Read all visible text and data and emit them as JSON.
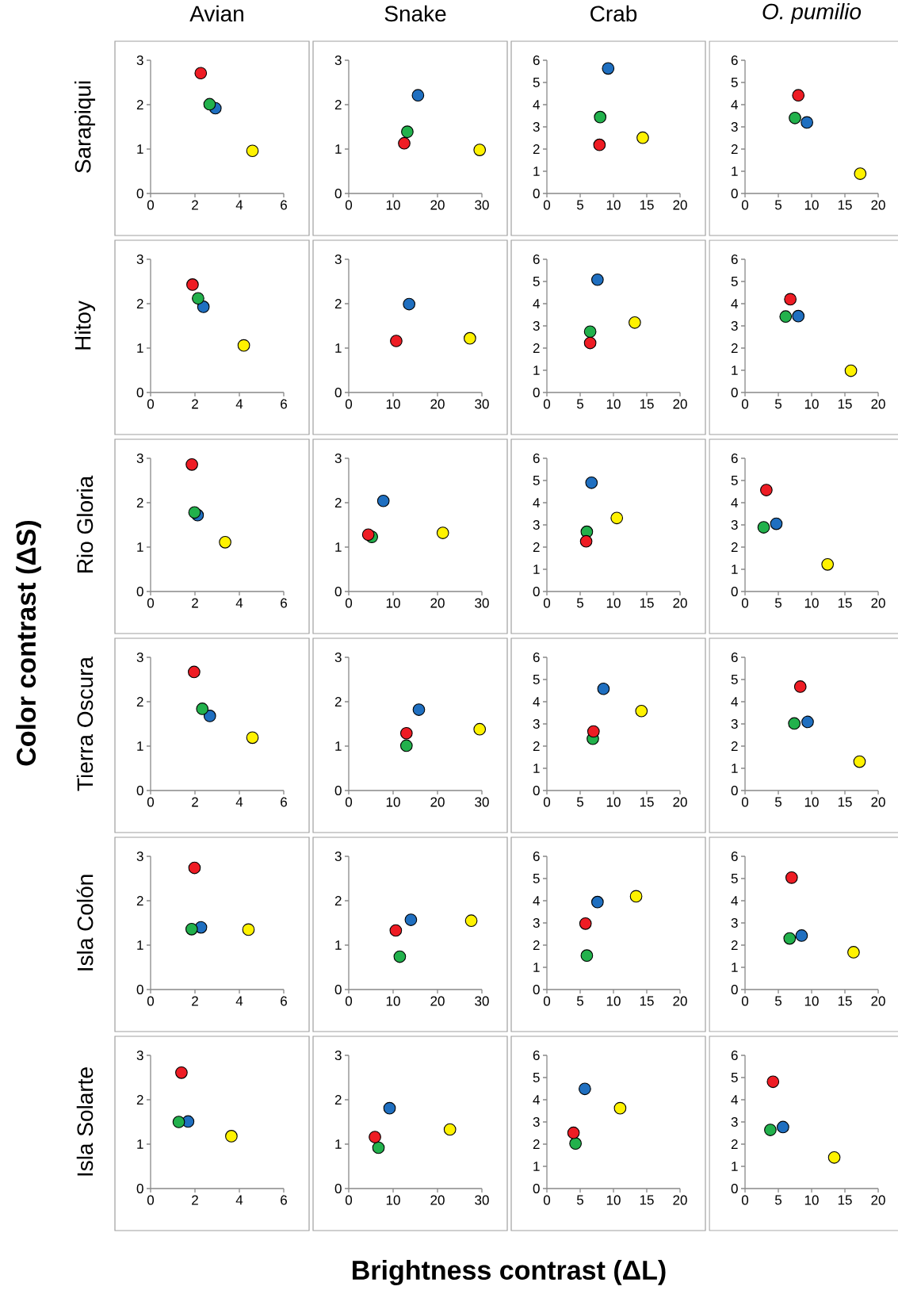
{
  "chart_data": [
    {
      "type": "scatter",
      "title": "Avian",
      "ylabel": "Sarapiqui",
      "annotations": [
        "Color contrast (**ΔS**)",
        "Brightness contrast (ΔL)"
      ],
      "xlim": [
        0,
        6
      ],
      "ylim": [
        0,
        3
      ],
      "xticks": [
        0,
        2,
        4,
        6
      ],
      "yticks": [
        0,
        1,
        2,
        3
      ],
      "marker": "circle",
      "colors": [
        "#ee1c24",
        "#22b14c",
        "#1f6fc0",
        "#fff200"
      ],
      "x": [
        2.26,
        2.66,
        2.92,
        4.59
      ],
      "values": [
        2.71,
        2.01,
        1.92,
        0.96
      ]
    },
    {
      "type": "scatter",
      "title": "Snake",
      "xlim": [
        0,
        30
      ],
      "ylim": [
        0,
        3
      ],
      "xticks": [
        0,
        10,
        20,
        30
      ],
      "yticks": [
        0,
        1,
        2,
        3
      ],
      "marker": "circle",
      "colors": [
        "#ee1c24",
        "#22b14c",
        "#1f6fc0",
        "#fff200"
      ],
      "x": [
        12.5,
        13.2,
        15.6,
        29.5
      ],
      "values": [
        1.13,
        1.39,
        2.21,
        0.98
      ]
    },
    {
      "type": "scatter",
      "title": "Crab",
      "xlim": [
        0,
        20
      ],
      "ylim": [
        0,
        6
      ],
      "xticks": [
        0,
        5,
        10,
        15,
        20
      ],
      "yticks": [
        0,
        1,
        2,
        3,
        4,
        5,
        6
      ],
      "marker": "circle",
      "colors": [
        "#ee1c24",
        "#22b14c",
        "#1f6fc0",
        "#fff200"
      ],
      "x": [
        7.9,
        8.0,
        9.2,
        14.4
      ],
      "values": [
        2.19,
        3.44,
        5.63,
        2.51
      ]
    },
    {
      "type": "scatter",
      "title": "*O. pumilio*",
      "xlim": [
        0,
        20
      ],
      "ylim": [
        0,
        6
      ],
      "xticks": [
        0,
        5,
        10,
        15,
        20
      ],
      "yticks": [
        0,
        1,
        2,
        3,
        4,
        5,
        6
      ],
      "marker": "circle",
      "colors": [
        "#ee1c24",
        "#22b14c",
        "#1f6fc0",
        "#fff200"
      ],
      "x": [
        8.0,
        7.5,
        9.3,
        17.3
      ],
      "values": [
        4.42,
        3.4,
        3.2,
        0.89
      ]
    },
    {
      "type": "scatter",
      "ylabel": "Hitoy",
      "xlim": [
        0,
        6
      ],
      "ylim": [
        0,
        3
      ],
      "xticks": [
        0,
        2,
        4,
        6
      ],
      "yticks": [
        0,
        1,
        2,
        3
      ],
      "marker": "circle",
      "colors": [
        "#ee1c24",
        "#22b14c",
        "#1f6fc0",
        "#fff200"
      ],
      "x": [
        1.89,
        2.14,
        2.38,
        4.2
      ],
      "values": [
        2.43,
        2.12,
        1.93,
        1.06
      ]
    },
    {
      "type": "scatter",
      "xlim": [
        0,
        30
      ],
      "ylim": [
        0,
        3
      ],
      "xticks": [
        0,
        10,
        20,
        30
      ],
      "yticks": [
        0,
        1,
        2,
        3
      ],
      "marker": "circle",
      "colors": [
        "#ee1c24",
        "#22b14c",
        "#1f6fc0",
        "#fff200"
      ],
      "x": [
        10.7,
        null,
        13.6,
        27.3
      ],
      "values": [
        1.16,
        null,
        1.99,
        1.22
      ]
    },
    {
      "type": "scatter",
      "xlim": [
        0,
        20
      ],
      "ylim": [
        0,
        6
      ],
      "xticks": [
        0,
        5,
        10,
        15,
        20
      ],
      "yticks": [
        0,
        1,
        2,
        3,
        4,
        5,
        6
      ],
      "marker": "circle",
      "colors": [
        "#ee1c24",
        "#22b14c",
        "#1f6fc0",
        "#fff200"
      ],
      "x": [
        6.5,
        6.5,
        7.6,
        13.2
      ],
      "values": [
        2.23,
        2.74,
        5.08,
        3.15
      ]
    },
    {
      "type": "scatter",
      "xlim": [
        0,
        20
      ],
      "ylim": [
        0,
        6
      ],
      "xticks": [
        0,
        5,
        10,
        15,
        20
      ],
      "yticks": [
        0,
        1,
        2,
        3,
        4,
        5,
        6
      ],
      "marker": "circle",
      "colors": [
        "#ee1c24",
        "#22b14c",
        "#1f6fc0",
        "#fff200"
      ],
      "x": [
        6.8,
        6.1,
        8.0,
        15.9
      ],
      "values": [
        4.2,
        3.42,
        3.44,
        0.98
      ]
    },
    {
      "type": "scatter",
      "ylabel": "Rio Gloria",
      "xlim": [
        0,
        6
      ],
      "ylim": [
        0,
        3
      ],
      "xticks": [
        0,
        2,
        4,
        6
      ],
      "yticks": [
        0,
        1,
        2,
        3
      ],
      "marker": "circle",
      "colors": [
        "#ee1c24",
        "#22b14c",
        "#1f6fc0",
        "#fff200"
      ],
      "x": [
        1.86,
        1.98,
        2.12,
        3.36
      ],
      "values": [
        2.86,
        1.78,
        1.72,
        1.11
      ]
    },
    {
      "type": "scatter",
      "xlim": [
        0,
        30
      ],
      "ylim": [
        0,
        3
      ],
      "xticks": [
        0,
        10,
        20,
        30
      ],
      "yticks": [
        0,
        1,
        2,
        3
      ],
      "marker": "circle",
      "colors": [
        "#ee1c24",
        "#22b14c",
        "#1f6fc0",
        "#fff200"
      ],
      "x": [
        4.4,
        5.2,
        7.8,
        21.2
      ],
      "values": [
        1.28,
        1.23,
        2.04,
        1.32
      ]
    },
    {
      "type": "scatter",
      "xlim": [
        0,
        20
      ],
      "ylim": [
        0,
        6
      ],
      "xticks": [
        0,
        5,
        10,
        15,
        20
      ],
      "yticks": [
        0,
        1,
        2,
        3,
        4,
        5,
        6
      ],
      "marker": "circle",
      "colors": [
        "#ee1c24",
        "#22b14c",
        "#1f6fc0",
        "#fff200"
      ],
      "x": [
        5.9,
        6.0,
        6.7,
        10.5
      ],
      "values": [
        2.26,
        2.69,
        4.9,
        3.31
      ]
    },
    {
      "type": "scatter",
      "xlim": [
        0,
        20
      ],
      "ylim": [
        0,
        6
      ],
      "xticks": [
        0,
        5,
        10,
        15,
        20
      ],
      "yticks": [
        0,
        1,
        2,
        3,
        4,
        5,
        6
      ],
      "marker": "circle",
      "colors": [
        "#ee1c24",
        "#22b14c",
        "#1f6fc0",
        "#fff200"
      ],
      "x": [
        3.2,
        2.8,
        4.7,
        12.4
      ],
      "values": [
        4.57,
        2.89,
        3.05,
        1.22
      ]
    },
    {
      "type": "scatter",
      "ylabel": "Tierra Oscura",
      "xlim": [
        0,
        6
      ],
      "ylim": [
        0,
        3
      ],
      "xticks": [
        0,
        2,
        4,
        6
      ],
      "yticks": [
        0,
        1,
        2,
        3
      ],
      "marker": "circle",
      "colors": [
        "#ee1c24",
        "#22b14c",
        "#1f6fc0",
        "#fff200"
      ],
      "x": [
        1.96,
        2.33,
        2.67,
        4.59
      ],
      "values": [
        2.67,
        1.84,
        1.68,
        1.19
      ]
    },
    {
      "type": "scatter",
      "xlim": [
        0,
        30
      ],
      "ylim": [
        0,
        3
      ],
      "xticks": [
        0,
        10,
        20,
        30
      ],
      "yticks": [
        0,
        1,
        2,
        3
      ],
      "marker": "circle",
      "colors": [
        "#ee1c24",
        "#22b14c",
        "#1f6fc0",
        "#fff200"
      ],
      "x": [
        13.0,
        13.0,
        15.8,
        29.5
      ],
      "values": [
        1.29,
        1.01,
        1.82,
        1.38
      ]
    },
    {
      "type": "scatter",
      "xlim": [
        0,
        20
      ],
      "ylim": [
        0,
        6
      ],
      "xticks": [
        0,
        5,
        10,
        15,
        20
      ],
      "yticks": [
        0,
        1,
        2,
        3,
        4,
        5,
        6
      ],
      "marker": "circle",
      "colors": [
        "#ee1c24",
        "#22b14c",
        "#1f6fc0",
        "#fff200"
      ],
      "x": [
        7.0,
        6.9,
        8.5,
        14.2
      ],
      "values": [
        2.66,
        2.33,
        4.58,
        3.58
      ]
    },
    {
      "type": "scatter",
      "xlim": [
        0,
        20
      ],
      "ylim": [
        0,
        6
      ],
      "xticks": [
        0,
        5,
        10,
        15,
        20
      ],
      "yticks": [
        0,
        1,
        2,
        3,
        4,
        5,
        6
      ],
      "marker": "circle",
      "colors": [
        "#ee1c24",
        "#22b14c",
        "#1f6fc0",
        "#fff200"
      ],
      "x": [
        8.3,
        7.4,
        9.4,
        17.2
      ],
      "values": [
        4.68,
        3.02,
        3.09,
        1.3
      ]
    },
    {
      "type": "scatter",
      "ylabel": "Isla Colón",
      "xlim": [
        0,
        6
      ],
      "ylim": [
        0,
        3
      ],
      "xticks": [
        0,
        2,
        4,
        6
      ],
      "yticks": [
        0,
        1,
        2,
        3
      ],
      "marker": "circle",
      "colors": [
        "#ee1c24",
        "#22b14c",
        "#1f6fc0",
        "#fff200"
      ],
      "x": [
        1.98,
        1.85,
        2.27,
        4.41
      ],
      "values": [
        2.74,
        1.36,
        1.4,
        1.35
      ]
    },
    {
      "type": "scatter",
      "xlim": [
        0,
        30
      ],
      "ylim": [
        0,
        3
      ],
      "xticks": [
        0,
        10,
        20,
        30
      ],
      "yticks": [
        0,
        1,
        2,
        3
      ],
      "marker": "circle",
      "colors": [
        "#ee1c24",
        "#22b14c",
        "#1f6fc0",
        "#fff200"
      ],
      "x": [
        10.6,
        11.5,
        14.0,
        27.6
      ],
      "values": [
        1.33,
        0.74,
        1.57,
        1.55
      ]
    },
    {
      "type": "scatter",
      "xlim": [
        0,
        20
      ],
      "ylim": [
        0,
        6
      ],
      "xticks": [
        0,
        5,
        10,
        15,
        20
      ],
      "yticks": [
        0,
        1,
        2,
        3,
        4,
        5,
        6
      ],
      "marker": "circle",
      "colors": [
        "#ee1c24",
        "#22b14c",
        "#1f6fc0",
        "#fff200"
      ],
      "x": [
        5.8,
        6.0,
        7.6,
        13.4
      ],
      "values": [
        2.97,
        1.53,
        3.94,
        4.2
      ]
    },
    {
      "type": "scatter",
      "xlim": [
        0,
        20
      ],
      "ylim": [
        0,
        6
      ],
      "xticks": [
        0,
        5,
        10,
        15,
        20
      ],
      "yticks": [
        0,
        1,
        2,
        3,
        4,
        5,
        6
      ],
      "marker": "circle",
      "colors": [
        "#ee1c24",
        "#22b14c",
        "#1f6fc0",
        "#fff200"
      ],
      "x": [
        7.0,
        6.7,
        8.5,
        16.3
      ],
      "values": [
        5.04,
        2.3,
        2.43,
        1.68
      ]
    },
    {
      "type": "scatter",
      "ylabel": "Isla Solarte",
      "xlim": [
        0,
        6
      ],
      "ylim": [
        0,
        3
      ],
      "xticks": [
        0,
        2,
        4,
        6
      ],
      "yticks": [
        0,
        1,
        2,
        3
      ],
      "marker": "circle",
      "colors": [
        "#ee1c24",
        "#22b14c",
        "#1f6fc0",
        "#fff200"
      ],
      "x": [
        1.39,
        1.27,
        1.69,
        3.64
      ],
      "values": [
        2.61,
        1.5,
        1.51,
        1.18
      ]
    },
    {
      "type": "scatter",
      "xlim": [
        0,
        30
      ],
      "ylim": [
        0,
        3
      ],
      "xticks": [
        0,
        10,
        20,
        30
      ],
      "yticks": [
        0,
        1,
        2,
        3
      ],
      "marker": "circle",
      "colors": [
        "#ee1c24",
        "#22b14c",
        "#1f6fc0",
        "#fff200"
      ],
      "x": [
        5.9,
        6.7,
        9.2,
        22.8
      ],
      "values": [
        1.16,
        0.92,
        1.81,
        1.33
      ]
    },
    {
      "type": "scatter",
      "xlim": [
        0,
        20
      ],
      "ylim": [
        0,
        6
      ],
      "xticks": [
        0,
        5,
        10,
        15,
        20
      ],
      "yticks": [
        0,
        1,
        2,
        3,
        4,
        5,
        6
      ],
      "marker": "circle",
      "colors": [
        "#ee1c24",
        "#22b14c",
        "#1f6fc0",
        "#fff200"
      ],
      "x": [
        4.0,
        4.3,
        5.7,
        11.0
      ],
      "values": [
        2.51,
        2.03,
        4.49,
        3.62
      ]
    },
    {
      "type": "scatter",
      "xlim": [
        0,
        20
      ],
      "ylim": [
        0,
        6
      ],
      "xticks": [
        0,
        5,
        10,
        15,
        20
      ],
      "yticks": [
        0,
        1,
        2,
        3,
        4,
        5,
        6
      ],
      "marker": "circle",
      "colors": [
        "#ee1c24",
        "#22b14c",
        "#1f6fc0",
        "#fff200"
      ],
      "x": [
        4.2,
        3.8,
        5.7,
        13.4
      ],
      "values": [
        4.81,
        2.64,
        2.77,
        1.4
      ]
    }
  ]
}
